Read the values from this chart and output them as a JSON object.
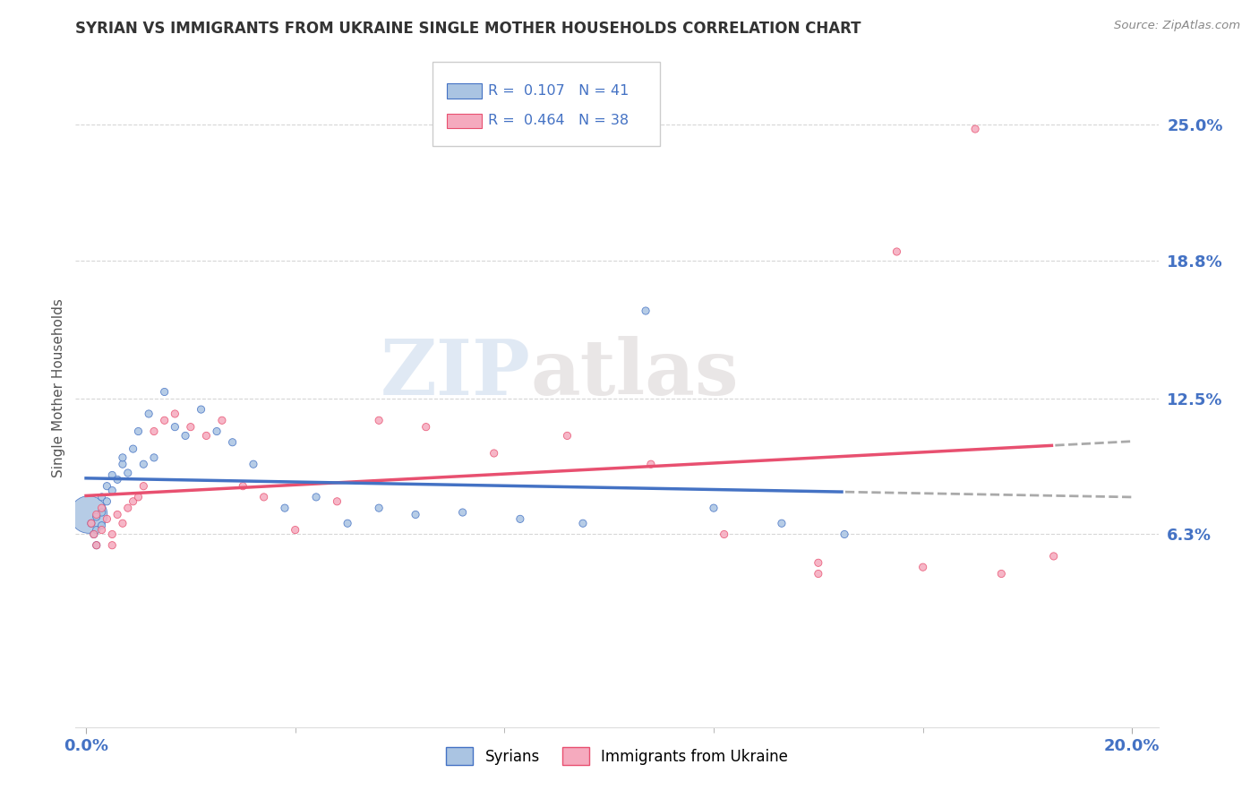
{
  "title": "SYRIAN VS IMMIGRANTS FROM UKRAINE SINGLE MOTHER HOUSEHOLDS CORRELATION CHART",
  "source": "Source: ZipAtlas.com",
  "ylabel": "Single Mother Households",
  "watermark_zip": "ZIP",
  "watermark_atlas": "atlas",
  "legend_r_syrian": "R =  0.107",
  "legend_n_syrian": "N = 41",
  "legend_r_ukraine": "R =  0.464",
  "legend_n_ukraine": "N = 38",
  "ytick_labels": [
    "6.3%",
    "12.5%",
    "18.8%",
    "25.0%"
  ],
  "ytick_values": [
    0.063,
    0.125,
    0.188,
    0.25
  ],
  "xtick_labels": [
    "0.0%",
    "20.0%"
  ],
  "xtick_values": [
    0.0,
    0.2
  ],
  "xlim": [
    -0.002,
    0.205
  ],
  "ylim": [
    -0.025,
    0.285
  ],
  "color_syrian": "#aac4e2",
  "color_ukraine": "#f5aabe",
  "color_syrian_line": "#4472c4",
  "color_ukraine_line": "#e85070",
  "color_dashed": "#aaaaaa",
  "color_grid": "#cccccc",
  "color_legend_text": "#4472c4",
  "background_color": "#ffffff",
  "syrian_x": [
    0.0005,
    0.001,
    0.0015,
    0.002,
    0.002,
    0.002,
    0.003,
    0.003,
    0.003,
    0.004,
    0.004,
    0.005,
    0.005,
    0.006,
    0.007,
    0.007,
    0.008,
    0.009,
    0.01,
    0.011,
    0.012,
    0.013,
    0.015,
    0.017,
    0.019,
    0.022,
    0.025,
    0.028,
    0.032,
    0.038,
    0.044,
    0.05,
    0.056,
    0.063,
    0.072,
    0.083,
    0.095,
    0.107,
    0.12,
    0.133,
    0.145
  ],
  "syrian_y": [
    0.072,
    0.068,
    0.063,
    0.071,
    0.065,
    0.058,
    0.08,
    0.073,
    0.067,
    0.085,
    0.078,
    0.09,
    0.083,
    0.088,
    0.095,
    0.098,
    0.091,
    0.102,
    0.11,
    0.095,
    0.118,
    0.098,
    0.128,
    0.112,
    0.108,
    0.12,
    0.11,
    0.105,
    0.095,
    0.075,
    0.08,
    0.068,
    0.075,
    0.072,
    0.073,
    0.07,
    0.068,
    0.165,
    0.075,
    0.068,
    0.063
  ],
  "syrian_sizes": [
    900,
    35,
    35,
    35,
    35,
    35,
    35,
    35,
    35,
    35,
    35,
    35,
    35,
    35,
    35,
    35,
    35,
    35,
    35,
    35,
    35,
    35,
    35,
    35,
    35,
    35,
    35,
    35,
    35,
    35,
    35,
    35,
    35,
    35,
    35,
    35,
    35,
    35,
    35,
    35,
    35
  ],
  "ukraine_x": [
    0.001,
    0.0015,
    0.002,
    0.002,
    0.003,
    0.003,
    0.004,
    0.005,
    0.005,
    0.006,
    0.007,
    0.008,
    0.009,
    0.01,
    0.011,
    0.013,
    0.015,
    0.017,
    0.02,
    0.023,
    0.026,
    0.03,
    0.034,
    0.04,
    0.048,
    0.056,
    0.065,
    0.078,
    0.092,
    0.108,
    0.122,
    0.14,
    0.155,
    0.17,
    0.14,
    0.16,
    0.175,
    0.185
  ],
  "ukraine_y": [
    0.068,
    0.063,
    0.072,
    0.058,
    0.075,
    0.065,
    0.07,
    0.063,
    0.058,
    0.072,
    0.068,
    0.075,
    0.078,
    0.08,
    0.085,
    0.11,
    0.115,
    0.118,
    0.112,
    0.108,
    0.115,
    0.085,
    0.08,
    0.065,
    0.078,
    0.115,
    0.112,
    0.1,
    0.108,
    0.095,
    0.063,
    0.05,
    0.192,
    0.248,
    0.045,
    0.048,
    0.045,
    0.053
  ],
  "ukraine_sizes": [
    35,
    35,
    35,
    35,
    35,
    35,
    35,
    35,
    35,
    35,
    35,
    35,
    35,
    35,
    35,
    35,
    35,
    35,
    35,
    35,
    35,
    35,
    35,
    35,
    35,
    35,
    35,
    35,
    35,
    35,
    35,
    35,
    35,
    35,
    35,
    35,
    35,
    35
  ]
}
